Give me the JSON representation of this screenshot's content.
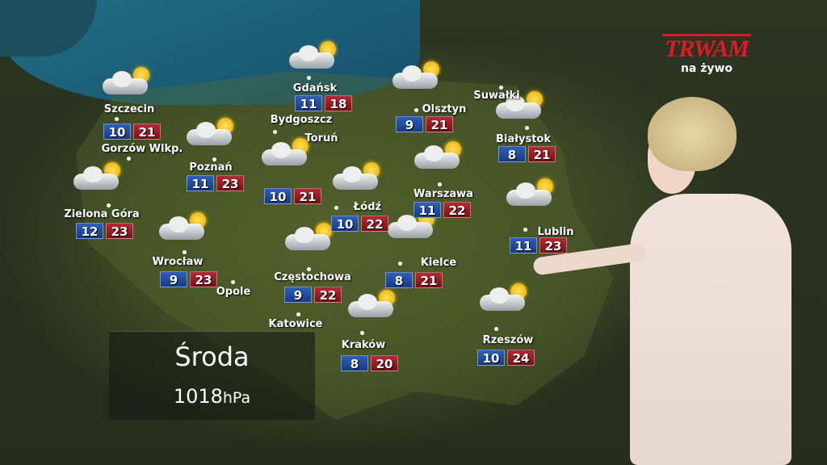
{
  "broadcast": {
    "logo": "TRWAM",
    "live_label": "na żywo"
  },
  "forecast": {
    "day": "Środa",
    "pressure_value": "1018",
    "pressure_unit": "hPa",
    "condition_icon": "partly-cloudy-icon"
  },
  "colors": {
    "min_temp": "#1e4a9e",
    "max_temp": "#9a1a24",
    "logo": "#e01a22"
  },
  "cities": [
    {
      "name": "Szczecin",
      "min": "10",
      "max": "21"
    },
    {
      "name": "Gdańsk",
      "min": "11",
      "max": "18"
    },
    {
      "name": "Olsztyn",
      "min": "9",
      "max": "21"
    },
    {
      "name": "Suwałki"
    },
    {
      "name": "Białystok",
      "min": "8",
      "max": "21"
    },
    {
      "name": "Bydgoszcz"
    },
    {
      "name": "Toruń",
      "min": "10",
      "max": "21"
    },
    {
      "name": "Gorzów Wlkp."
    },
    {
      "name": "Poznań",
      "min": "11",
      "max": "23"
    },
    {
      "name": "Zielona Góra",
      "min": "12",
      "max": "23"
    },
    {
      "name": "Łódź",
      "min": "10",
      "max": "22"
    },
    {
      "name": "Warszawa",
      "min": "11",
      "max": "22"
    },
    {
      "name": "Lublin",
      "min": "11",
      "max": "23"
    },
    {
      "name": "Wrocław",
      "min": "9",
      "max": "23"
    },
    {
      "name": "Opole"
    },
    {
      "name": "Częstochowa",
      "min": "9",
      "max": "22"
    },
    {
      "name": "Kielce",
      "min": "8",
      "max": "21"
    },
    {
      "name": "Katowice"
    },
    {
      "name": "Kraków",
      "min": "8",
      "max": "20"
    },
    {
      "name": "Rzeszów",
      "min": "10",
      "max": "24"
    }
  ]
}
